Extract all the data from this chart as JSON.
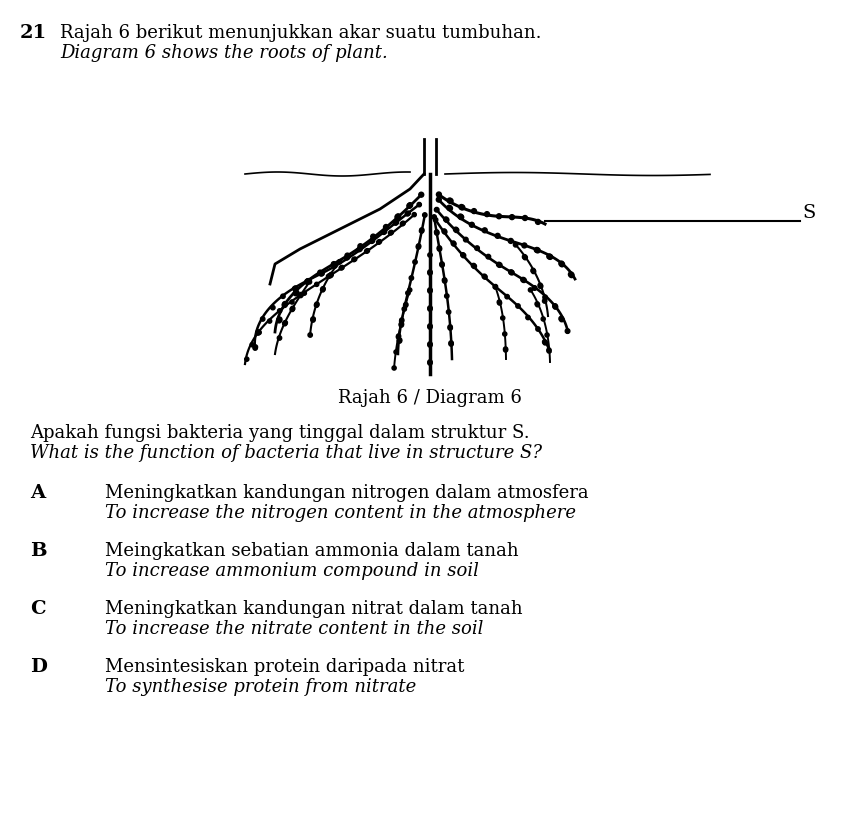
{
  "question_number": "21",
  "title_malay": "Rajah 6 berikut menunjukkan akar suatu tumbuhan.",
  "title_english": "Diagram 6 shows the roots of plant.",
  "diagram_label": "Rajah 6 / Diagram 6",
  "structure_label": "S",
  "question_malay": "Apakah fungsi bakteria yang tinggal dalam struktur S.",
  "question_english": "What is the function of bacteria that live in structure S?",
  "options": [
    {
      "letter": "A",
      "malay": "Meningkatkan kandungan nitrogen dalam atmosfera",
      "english": "To increase the nitrogen content in the atmosphere"
    },
    {
      "letter": "B",
      "malay": "Meingkatkan sebatian ammonia dalam tanah",
      "english": "To increase ammonium compound in soil"
    },
    {
      "letter": "C",
      "malay": "Meningkatkan kandungan nitrat dalam tanah",
      "english": "To increase the nitrate content in the soil"
    },
    {
      "letter": "D",
      "malay": "Mensintesiskan protein daripada nitrat",
      "english": "To synthesise protein from nitrate"
    }
  ],
  "bg_color": "#ffffff",
  "text_color": "#000000"
}
